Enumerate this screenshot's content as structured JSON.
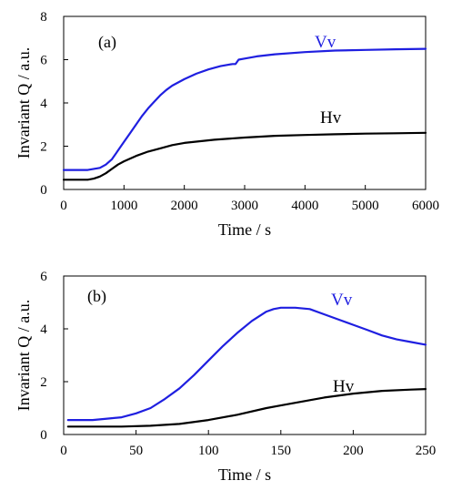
{
  "chart_data": [
    {
      "type": "line",
      "panel_label": "(a)",
      "xlabel": "Time / s",
      "ylabel": "Invariant Q / a.u.",
      "xlim": [
        0,
        6000
      ],
      "ylim": [
        0,
        8
      ],
      "xticks": [
        0,
        1000,
        2000,
        3000,
        4000,
        5000,
        6000
      ],
      "yticks": [
        0,
        2,
        4,
        6,
        8
      ],
      "grid": false,
      "series": [
        {
          "name": "Vv",
          "color": "#1f1fe0",
          "x": [
            0,
            200,
            400,
            600,
            700,
            800,
            900,
            1000,
            1100,
            1200,
            1300,
            1400,
            1500,
            1600,
            1700,
            1800,
            2000,
            2200,
            2400,
            2600,
            2800,
            2850,
            2900,
            3000,
            3200,
            3500,
            4000,
            4500,
            5000,
            5500,
            6000
          ],
          "y": [
            0.9,
            0.9,
            0.9,
            1.0,
            1.15,
            1.4,
            1.8,
            2.2,
            2.6,
            3.0,
            3.4,
            3.75,
            4.05,
            4.35,
            4.6,
            4.8,
            5.1,
            5.35,
            5.55,
            5.7,
            5.8,
            5.8,
            6.0,
            6.05,
            6.15,
            6.25,
            6.35,
            6.42,
            6.45,
            6.48,
            6.5
          ]
        },
        {
          "name": "Hv",
          "color": "#000000",
          "x": [
            0,
            200,
            400,
            500,
            600,
            700,
            800,
            900,
            1000,
            1200,
            1400,
            1600,
            1800,
            2000,
            2500,
            3000,
            3500,
            4000,
            4500,
            5000,
            5500,
            6000
          ],
          "y": [
            0.45,
            0.45,
            0.45,
            0.5,
            0.6,
            0.75,
            0.95,
            1.15,
            1.3,
            1.55,
            1.75,
            1.9,
            2.05,
            2.15,
            2.3,
            2.4,
            2.48,
            2.52,
            2.55,
            2.58,
            2.6,
            2.62
          ]
        }
      ]
    },
    {
      "type": "line",
      "panel_label": "(b)",
      "xlabel": "Time / s",
      "ylabel": "Invariant Q / a.u.",
      "xlim": [
        0,
        250
      ],
      "ylim": [
        0,
        6
      ],
      "xticks": [
        0,
        50,
        100,
        150,
        200,
        250
      ],
      "yticks": [
        0,
        2,
        4,
        6
      ],
      "grid": false,
      "series": [
        {
          "name": "Vv",
          "color": "#1f1fe0",
          "x": [
            3,
            20,
            30,
            40,
            50,
            60,
            70,
            80,
            90,
            100,
            110,
            120,
            130,
            140,
            145,
            150,
            160,
            170,
            180,
            190,
            200,
            210,
            220,
            230,
            240,
            250
          ],
          "y": [
            0.55,
            0.55,
            0.6,
            0.65,
            0.8,
            1.0,
            1.35,
            1.75,
            2.25,
            2.8,
            3.35,
            3.85,
            4.3,
            4.65,
            4.75,
            4.8,
            4.8,
            4.75,
            4.55,
            4.35,
            4.15,
            3.95,
            3.75,
            3.6,
            3.5,
            3.4
          ]
        },
        {
          "name": "Hv",
          "color": "#000000",
          "x": [
            3,
            20,
            40,
            60,
            80,
            100,
            120,
            140,
            150,
            160,
            180,
            200,
            220,
            240,
            250
          ],
          "y": [
            0.3,
            0.3,
            0.3,
            0.33,
            0.4,
            0.55,
            0.75,
            1.0,
            1.1,
            1.2,
            1.4,
            1.55,
            1.65,
            1.7,
            1.72
          ]
        }
      ]
    }
  ]
}
